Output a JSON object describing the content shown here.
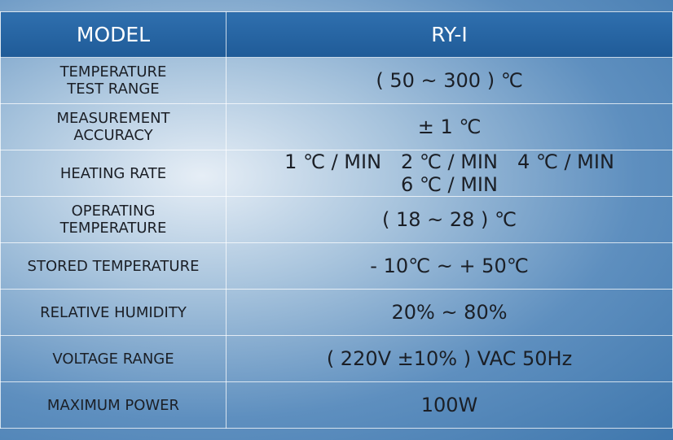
{
  "header": {
    "label": "MODEL",
    "value": "RY-I"
  },
  "rows": [
    {
      "label": "TEMPERATURE\nTEST RANGE",
      "value": "( 50 ~ 300 ) ℃"
    },
    {
      "label": "MEASUREMENT\nACCURACY",
      "value": "± 1 ℃"
    },
    {
      "label": "HEATING RATE",
      "value": [
        "1 ℃ / MIN",
        "2 ℃ / MIN",
        "4 ℃ / MIN",
        "6 ℃ / MIN"
      ]
    },
    {
      "label": "OPERATING\nTEMPERATURE",
      "value": "( 18 ~ 28 ) ℃"
    },
    {
      "label": "STORED TEMPERATURE",
      "value": "- 10℃ ~ + 50℃"
    },
    {
      "label": "RELATIVE HUMIDITY",
      "value": "20% ~ 80%"
    },
    {
      "label": "VOLTAGE RANGE",
      "value": "( 220V ±10% ) VAC   50Hz"
    },
    {
      "label": "MAXIMUM POWER",
      "value": "100W"
    }
  ]
}
